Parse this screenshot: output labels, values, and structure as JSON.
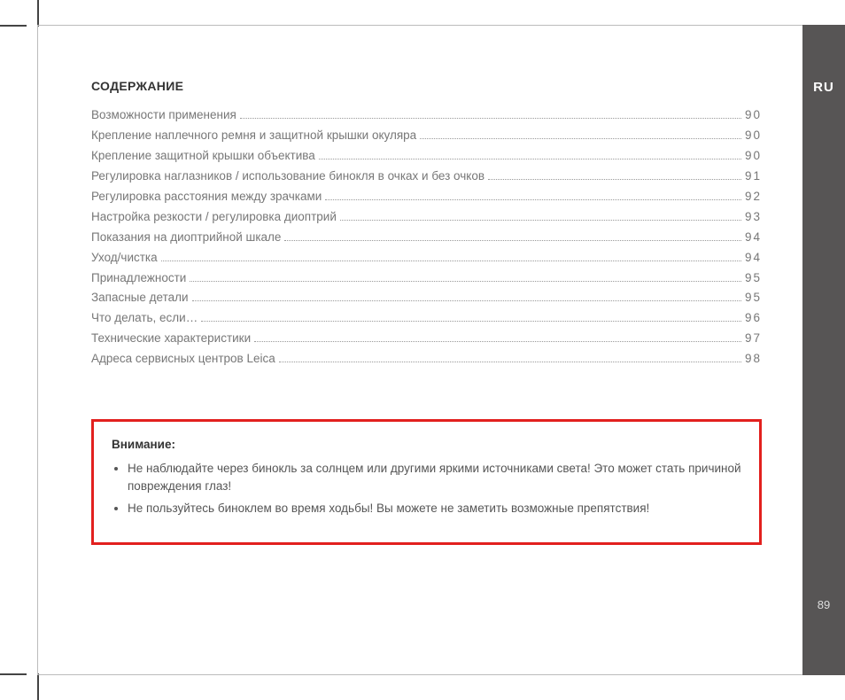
{
  "lang_code": "RU",
  "page_number": "89",
  "heading": "СОДЕРЖАНИЕ",
  "toc": [
    {
      "title": "Возможности применения",
      "page": "90"
    },
    {
      "title": "Крепление наплечного ремня и защитной крышки окуляра",
      "page": "90"
    },
    {
      "title": "Крепление защитной крышки объектива",
      "page": "90"
    },
    {
      "title": "Регулировка наглазников / использование бинокля в очках и без очков",
      "page": "91"
    },
    {
      "title": "Регулировка расстояния между зрачками",
      "page": "92"
    },
    {
      "title": "Настройка резкости / регулировка диоптрий",
      "page": "93"
    },
    {
      "title": "Показания на диоптрийной шкале",
      "page": "94"
    },
    {
      "title": "Уход/чистка",
      "page": "94"
    },
    {
      "title": "Принадлежности",
      "page": "95"
    },
    {
      "title": "Запасные детали",
      "page": "95"
    },
    {
      "title": "Что делать, если…",
      "page": "96"
    },
    {
      "title": "Технические характеристики",
      "page": "97"
    },
    {
      "title": "Адреса сервисных центров Leica",
      "page": "98"
    }
  ],
  "warning": {
    "title": "Внимание:",
    "items": [
      "Не наблюдайте через бинокль за солнцем или другими яркими источниками света! Это может стать причиной повреждения глаз!",
      "Не пользуйтесь биноклем во время ходьбы! Вы можете не заметить возможные препятствия!"
    ]
  },
  "colors": {
    "accent_red": "#e2201e",
    "tab_bg": "#575555",
    "text_body": "#777777",
    "text_heading": "#333333",
    "crop_mark": "#444444"
  }
}
